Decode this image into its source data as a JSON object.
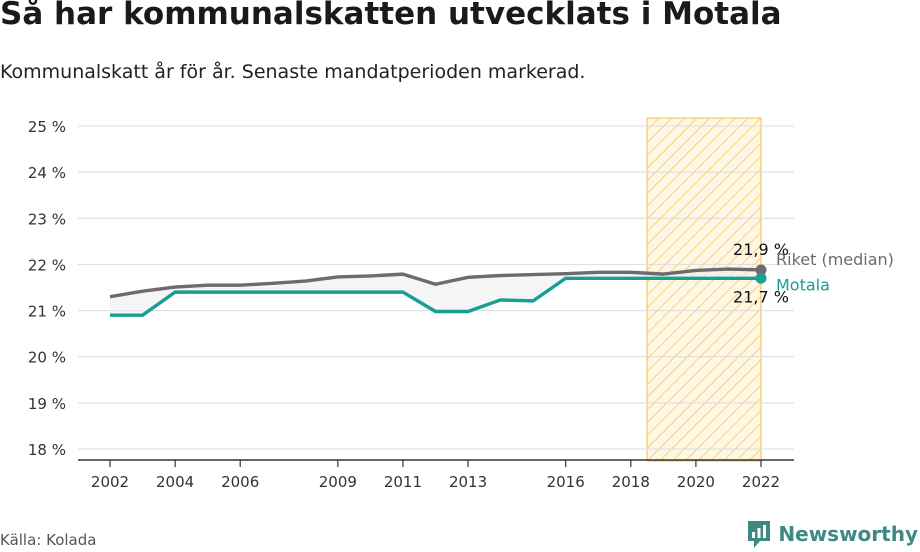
{
  "title": "Så har kommunalskatten utvecklats i Motala",
  "subtitle": "Kommunalskatt år för år. Senaste mandatperioden markerad.",
  "source": "Källa: Kolada",
  "brand": {
    "name": "Newsworthy",
    "icon": "newsworthy-logo-icon",
    "color": "#3d8a85"
  },
  "chart_data": {
    "type": "line",
    "x": [
      2002,
      2003,
      2004,
      2005,
      2006,
      2007,
      2008,
      2009,
      2010,
      2011,
      2012,
      2013,
      2014,
      2015,
      2016,
      2017,
      2018,
      2019,
      2020,
      2021,
      2022
    ],
    "series": [
      {
        "name": "Riket (median)",
        "color": "#6e6a72",
        "values": [
          21.3,
          21.42,
          21.51,
          21.55,
          21.55,
          21.59,
          21.64,
          21.73,
          21.75,
          21.79,
          21.57,
          21.72,
          21.76,
          21.78,
          21.8,
          21.83,
          21.83,
          21.79,
          21.87,
          21.9,
          21.88
        ],
        "end_label": "21,9 %"
      },
      {
        "name": "Motala",
        "color": "#179f93",
        "values": [
          20.9,
          20.9,
          21.4,
          21.4,
          21.4,
          21.4,
          21.4,
          21.4,
          21.4,
          21.4,
          20.98,
          20.98,
          21.23,
          21.21,
          21.7,
          21.7,
          21.7,
          21.7,
          21.7,
          21.7,
          21.7
        ],
        "end_label": "21,7 %"
      }
    ],
    "x_ticks": [
      2002,
      2004,
      2006,
      2009,
      2011,
      2013,
      2016,
      2018,
      2020,
      2022
    ],
    "x_tick_labels": [
      "2002",
      "2004",
      "2006",
      "2009",
      "2011",
      "2013",
      "2016",
      "2018",
      "2020",
      "2022"
    ],
    "y_ticks": [
      18,
      19,
      20,
      21,
      22,
      23,
      24,
      25
    ],
    "y_tick_labels": [
      "18 %",
      "19 %",
      "20 %",
      "21 %",
      "22 %",
      "23 %",
      "24 %",
      "25 %"
    ],
    "ylim": [
      18,
      25
    ],
    "xlim": [
      2001,
      2023
    ],
    "highlight_period": [
      2018.5,
      2022
    ],
    "highlight_color": "#f7c85a",
    "grid": true,
    "legend": "end-of-line labels"
  }
}
